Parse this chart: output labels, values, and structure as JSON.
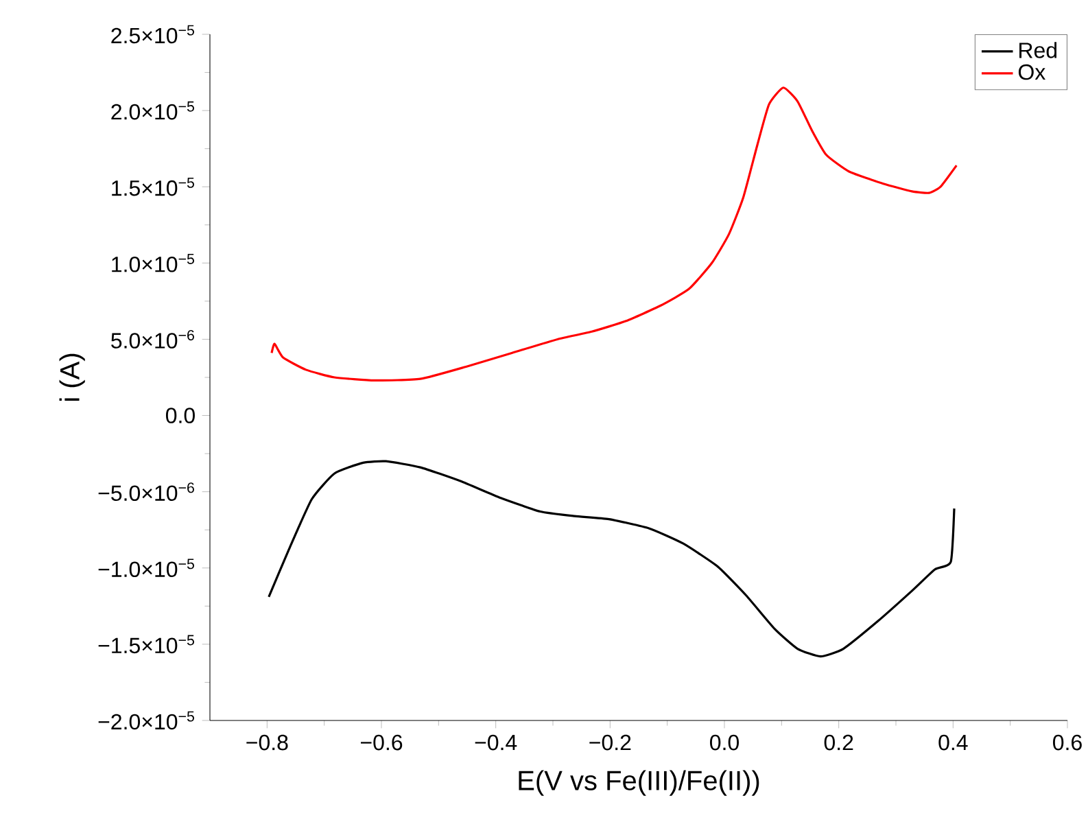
{
  "chart_data": {
    "type": "line",
    "xlabel": "E(V vs Fe(III)/Fe(II))",
    "ylabel": "i (A)",
    "xlim": [
      -0.9,
      0.6
    ],
    "xticks": [
      {
        "value": -0.8,
        "label": "−0.8"
      },
      {
        "value": -0.6,
        "label": "−0.6"
      },
      {
        "value": -0.4,
        "label": "−0.4"
      },
      {
        "value": -0.2,
        "label": "−0.2"
      },
      {
        "value": 0.0,
        "label": "0.0"
      },
      {
        "value": 0.2,
        "label": "0.2"
      },
      {
        "value": 0.4,
        "label": "0.4"
      },
      {
        "value": 0.6,
        "label": "0.6"
      }
    ],
    "ylim": [
      -2e-05,
      2.5e-05
    ],
    "yticks": [
      {
        "value": -2e-05,
        "label": "−2.0×10$^{−5}$"
      },
      {
        "value": -1.5e-05,
        "label": "−1.5×10$^{−5}$"
      },
      {
        "value": -1e-05,
        "label": "−1.0×10$^{−5}$"
      },
      {
        "value": -5e-06,
        "label": "−5.0×10$^{−6}$"
      },
      {
        "value": 0.0,
        "label": "0.0"
      },
      {
        "value": 5e-06,
        "label": "5.0×10$^{−6}$"
      },
      {
        "value": 1e-05,
        "label": "1.0×10$^{−5}$"
      },
      {
        "value": 1.5e-05,
        "label": "1.5×10$^{−5}$"
      },
      {
        "value": 2e-05,
        "label": "2.0×10$^{−5}$"
      },
      {
        "value": 2.5e-05,
        "label": "2.5×10$^{−5}$"
      }
    ],
    "legend": "top right",
    "grid": false,
    "marker": "none",
    "line_style": "solid",
    "series": [
      {
        "name": "Red",
        "color": "#000000",
        "x": [
          -0.797,
          -0.762,
          -0.722,
          -0.682,
          -0.632,
          -0.592,
          -0.532,
          -0.462,
          -0.392,
          -0.322,
          -0.262,
          -0.202,
          -0.132,
          -0.072,
          -0.012,
          0.038,
          0.088,
          0.128,
          0.168,
          0.208,
          0.268,
          0.328,
          0.368,
          0.396,
          0.402
        ],
        "values": [
          -1.19e-05,
          -8.8e-06,
          -5.5e-06,
          -3.8e-06,
          -3.1e-06,
          -3e-06,
          -3.4e-06,
          -4.3e-06,
          -5.4e-06,
          -6.3e-06,
          -6.6e-06,
          -6.8e-06,
          -7.4e-06,
          -8.4e-06,
          -9.9e-06,
          -1.18e-05,
          -1.4e-05,
          -1.53e-05,
          -1.58e-05,
          -1.53e-05,
          -1.35e-05,
          -1.15e-05,
          -1.01e-05,
          -9.6e-06,
          -6.1e-06
        ]
      },
      {
        "name": "Ox",
        "color": "#ff0000",
        "x": [
          -0.792,
          -0.787,
          -0.772,
          -0.732,
          -0.682,
          -0.612,
          -0.532,
          -0.452,
          -0.372,
          -0.292,
          -0.232,
          -0.172,
          -0.112,
          -0.062,
          -0.022,
          0.008,
          0.033,
          0.058,
          0.078,
          0.103,
          0.128,
          0.153,
          0.178,
          0.218,
          0.278,
          0.328,
          0.358,
          0.378,
          0.406
        ],
        "values": [
          4.1e-06,
          4.7e-06,
          3.8e-06,
          3e-06,
          2.5e-06,
          2.3e-06,
          2.4e-06,
          3.2e-06,
          4.1e-06,
          5e-06,
          5.5e-06,
          6.2e-06,
          7.2e-06,
          8.3e-06,
          1e-05,
          1.19e-05,
          1.43e-05,
          1.78e-05,
          2.04e-05,
          2.15e-05,
          2.06e-05,
          1.87e-05,
          1.71e-05,
          1.6e-05,
          1.52e-05,
          1.47e-05,
          1.46e-05,
          1.5e-05,
          1.64e-05
        ]
      }
    ]
  }
}
